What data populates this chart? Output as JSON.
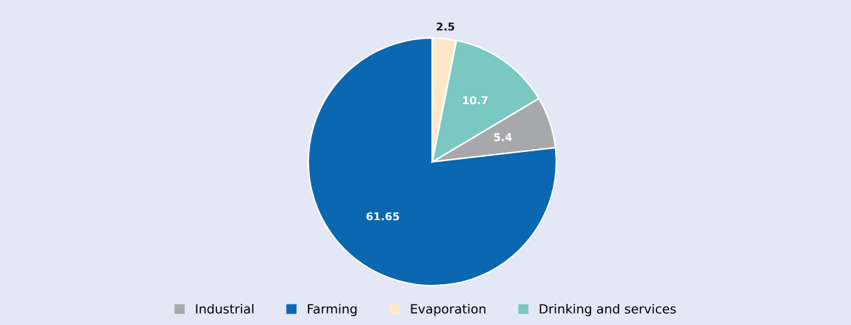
{
  "chart_data": {
    "type": "pie",
    "categories": [
      "Industrial",
      "Farming",
      "Evaporation",
      "Drinking and services"
    ],
    "values": [
      5.4,
      61.65,
      2.5,
      10.7
    ],
    "colors": [
      "#a7a8ab",
      "#0b67b0",
      "#fde9c9",
      "#7bc8c3"
    ],
    "data_labels": true,
    "legend": "bottom"
  }
}
